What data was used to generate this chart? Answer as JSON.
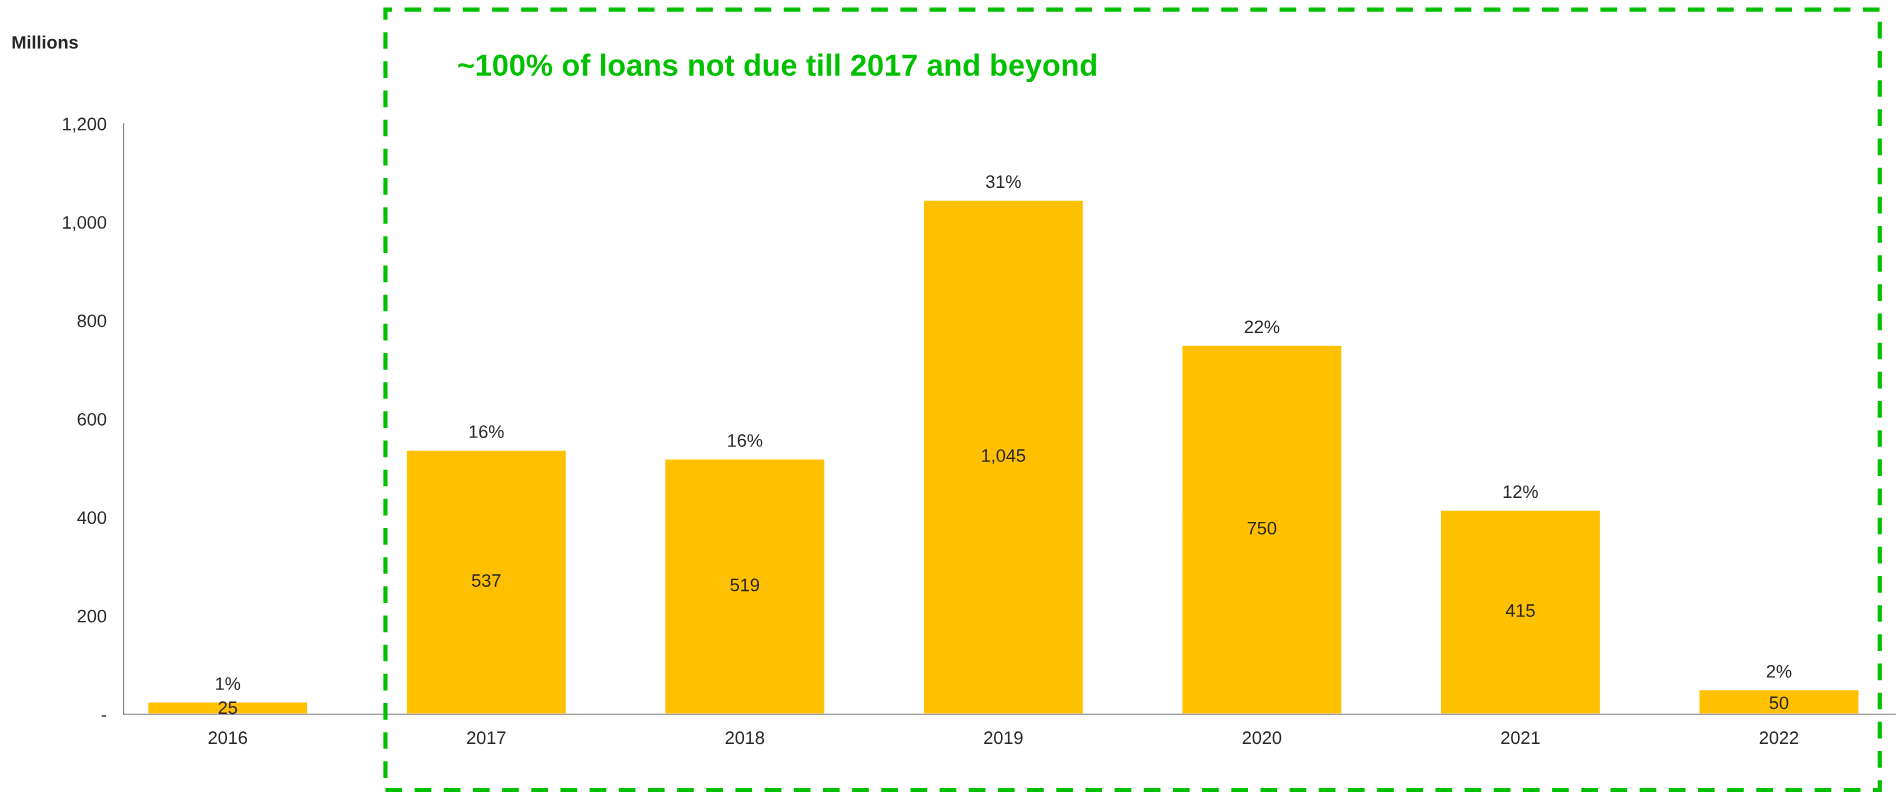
{
  "chart_data": {
    "type": "bar",
    "ylabel": "Millions",
    "categories": [
      "2016",
      "2017",
      "2018",
      "2019",
      "2020",
      "2021",
      "2022"
    ],
    "values": [
      25,
      537,
      519,
      1045,
      750,
      415,
      50
    ],
    "color": "#ffc000",
    "value_labels": [
      "25",
      "537",
      "519",
      "1,045",
      "750",
      "415",
      "50"
    ],
    "annotations": [
      {
        "text": "1%",
        "x": "2016",
        "y": 25
      },
      {
        "text": "16%",
        "x": "2017",
        "y": 537
      },
      {
        "text": "16%",
        "x": "2018",
        "y": 519
      },
      {
        "text": "31%",
        "x": "2019",
        "y": 1045
      },
      {
        "text": "22%",
        "x": "2020",
        "y": 750
      },
      {
        "text": "12%",
        "x": "2021",
        "y": 415
      },
      {
        "text": "2%",
        "x": "2022",
        "y": 50
      },
      "~100% of loans not due till 2017 and beyond"
    ],
    "ylim": [
      0,
      1200
    ],
    "yticks": [
      {
        "value": 0,
        "label": "-"
      },
      200,
      400,
      600,
      800,
      {
        "value": 1000,
        "label": "1,000"
      },
      {
        "value": 1200,
        "label": "1,200"
      }
    ],
    "grid": false,
    "legend": false
  }
}
